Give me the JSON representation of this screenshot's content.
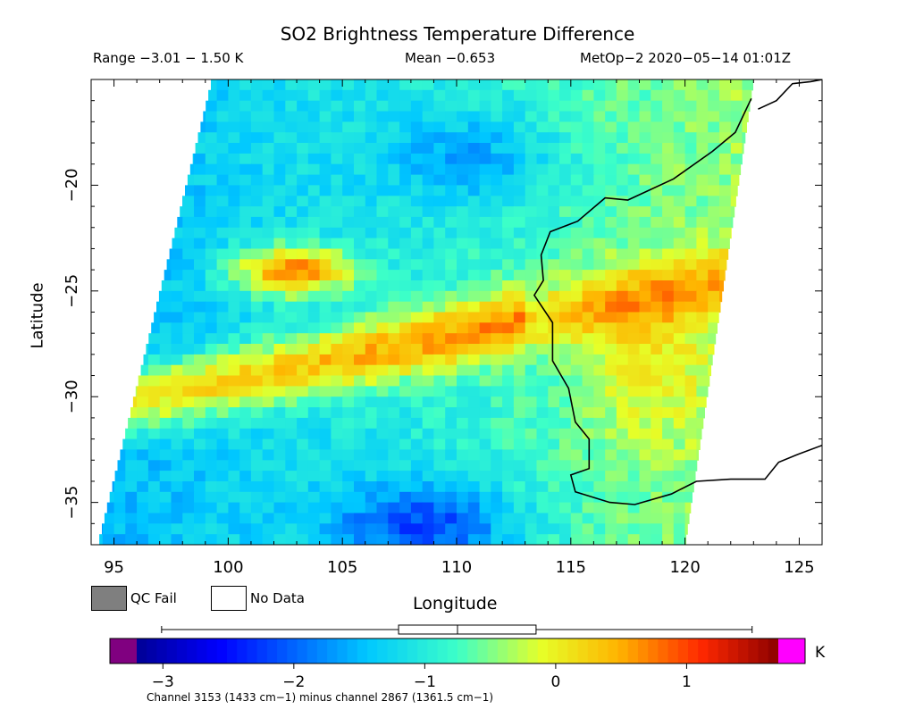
{
  "chart_data": {
    "type": "heatmap",
    "title": "SO2 Brightness Temperature Difference",
    "range_text": "Range −3.01 − 1.50 K",
    "mean_text": "Mean −0.653",
    "satellite_text": "MetOp−2 2020−05−14 01:01Z",
    "xlabel": "Longitude",
    "ylabel": "Latitude",
    "xlim": [
      94,
      126
    ],
    "ylim": [
      -37,
      -15
    ],
    "x_ticks": [
      95,
      100,
      105,
      110,
      115,
      120,
      125
    ],
    "x_tick_labels": [
      "95",
      "100",
      "105",
      "110",
      "115",
      "120",
      "125"
    ],
    "y_ticks": [
      -20,
      -25,
      -30,
      -35
    ],
    "y_tick_labels": [
      "−20",
      "−25",
      "−30",
      "−35"
    ],
    "value_range": [
      -3.01,
      1.5
    ],
    "mean": -0.653,
    "colorbar": {
      "min": -3.2,
      "max": 1.7,
      "ticks": [
        -3,
        -2,
        -1,
        0,
        1
      ],
      "tick_labels": [
        "−3",
        "−2",
        "−1",
        "0",
        "1"
      ],
      "unit": "K",
      "box_whisker": {
        "min": -3.01,
        "q1": -1.2,
        "median": -0.75,
        "q3": -0.15,
        "max": 1.5
      }
    },
    "legend": [
      {
        "label": "QC Fail",
        "color": "#7f7f7f"
      },
      {
        "label": "No Data",
        "color": "#ffffff"
      }
    ],
    "footnote": "Channel 3153 (1433 cm−1) minus channel 2867 (1361.5 cm−1)",
    "swath_corners": [
      [
        99.3,
        -15
      ],
      [
        123,
        -15
      ],
      [
        120,
        -37
      ],
      [
        94.3,
        -37
      ]
    ],
    "features": [
      {
        "name": "so2-plume-west",
        "lon": 102.5,
        "lat": -23.8,
        "value": 1.2
      },
      {
        "name": "so2-band-east",
        "lon": 109,
        "lat": -27.8,
        "value": 0.6
      },
      {
        "name": "low-south",
        "lon": 108.5,
        "lat": -35.5,
        "value": -2.1
      },
      {
        "name": "low-north",
        "lon": 110.5,
        "lat": -18.5,
        "value": -1.6
      }
    ],
    "coastline_australia_west": [
      [
        122.9,
        -15.9
      ],
      [
        122.2,
        -17.5
      ],
      [
        121.2,
        -18.4
      ],
      [
        119.5,
        -19.7
      ],
      [
        117.5,
        -20.7
      ],
      [
        116.5,
        -20.6
      ],
      [
        115.3,
        -21.7
      ],
      [
        114.1,
        -22.2
      ],
      [
        113.7,
        -23.3
      ],
      [
        113.8,
        -24.5
      ],
      [
        113.4,
        -25.2
      ],
      [
        114.2,
        -26.5
      ],
      [
        114.2,
        -28.3
      ],
      [
        114.9,
        -29.6
      ],
      [
        115.2,
        -31.2
      ],
      [
        115.8,
        -32.0
      ],
      [
        115.8,
        -33.4
      ],
      [
        115.0,
        -33.7
      ],
      [
        115.2,
        -34.5
      ],
      [
        116.7,
        -35.0
      ],
      [
        117.8,
        -35.1
      ],
      [
        119.4,
        -34.6
      ],
      [
        120.5,
        -34.0
      ],
      [
        122.0,
        -33.9
      ],
      [
        123.5,
        -33.9
      ],
      [
        124.1,
        -33.1
      ],
      [
        125.0,
        -32.7
      ],
      [
        126.0,
        -32.3
      ]
    ],
    "coastline_northwest_tip": [
      [
        123.2,
        -16.4
      ],
      [
        124.0,
        -16.0
      ],
      [
        124.7,
        -15.2
      ],
      [
        125.5,
        -15.1
      ],
      [
        126.0,
        -15.0
      ]
    ]
  }
}
